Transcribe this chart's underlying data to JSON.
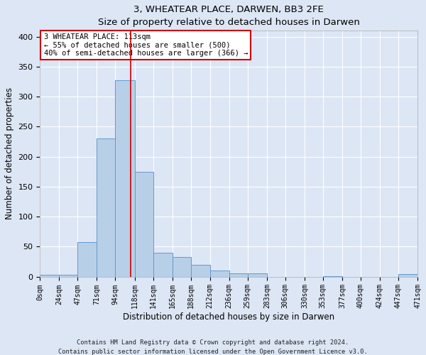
{
  "title": "3, WHEATEAR PLACE, DARWEN, BB3 2FE",
  "subtitle": "Size of property relative to detached houses in Darwen",
  "xlabel": "Distribution of detached houses by size in Darwen",
  "ylabel": "Number of detached properties",
  "footer_line1": "Contains HM Land Registry data © Crown copyright and database right 2024.",
  "footer_line2": "Contains public sector information licensed under the Open Government Licence v3.0.",
  "bin_edges": [
    0,
    24,
    47,
    71,
    94,
    118,
    141,
    165,
    188,
    212,
    236,
    259,
    283,
    306,
    330,
    353,
    377,
    400,
    424,
    447,
    471
  ],
  "bin_labels": [
    "0sqm",
    "24sqm",
    "47sqm",
    "71sqm",
    "94sqm",
    "118sqm",
    "141sqm",
    "165sqm",
    "188sqm",
    "212sqm",
    "236sqm",
    "259sqm",
    "283sqm",
    "306sqm",
    "330sqm",
    "353sqm",
    "377sqm",
    "400sqm",
    "424sqm",
    "447sqm",
    "471sqm"
  ],
  "bar_values": [
    3,
    3,
    57,
    230,
    328,
    175,
    40,
    33,
    20,
    10,
    5,
    5,
    0,
    0,
    0,
    1,
    0,
    0,
    0,
    4
  ],
  "bar_color": "#b8cfe8",
  "bar_edge_color": "#6699cc",
  "background_color": "#dce6f5",
  "grid_color": "#ffffff",
  "fig_background": "#dce6f5",
  "annotation_line1": "3 WHEATEAR PLACE: 113sqm",
  "annotation_line2": "← 55% of detached houses are smaller (500)",
  "annotation_line3": "40% of semi-detached houses are larger (366) →",
  "annotation_box_color": "#ffffff",
  "annotation_box_edge": "#cc0000",
  "vline_x": 113,
  "vline_color": "#cc0000",
  "ylim_max": 410,
  "yticks": [
    0,
    50,
    100,
    150,
    200,
    250,
    300,
    350,
    400
  ]
}
